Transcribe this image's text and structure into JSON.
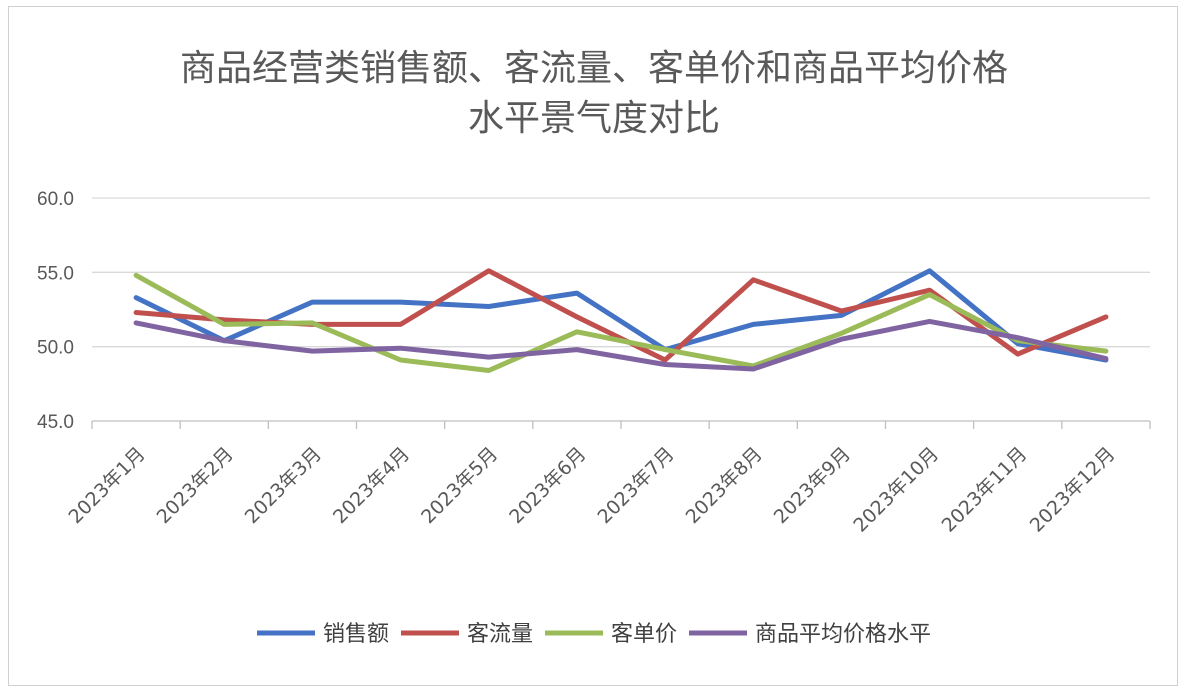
{
  "chart_data": {
    "type": "line",
    "title_lines": [
      "商品经营类销售额、客流量、客单价和商品平均价格",
      "水平景气度对比"
    ],
    "categories": [
      "2023年1月",
      "2023年2月",
      "2023年3月",
      "2023年4月",
      "2023年5月",
      "2023年6月",
      "2023年7月",
      "2023年8月",
      "2023年9月",
      "2023年10月",
      "2023年11月",
      "2023年12月"
    ],
    "ylim": [
      45.0,
      60.0
    ],
    "yticks": [
      "45.0",
      "50.0",
      "55.0",
      "60.0"
    ],
    "ytick_values": [
      45,
      50,
      55,
      60
    ],
    "grid": true,
    "legend_position": "bottom",
    "series": [
      {
        "name": "销售额",
        "color": "#4472C4",
        "values": [
          53.3,
          50.4,
          53.0,
          53.0,
          52.7,
          53.6,
          49.8,
          51.5,
          52.1,
          55.1,
          50.2,
          49.1
        ]
      },
      {
        "name": "客流量",
        "color": "#C0504D",
        "values": [
          52.3,
          51.8,
          51.5,
          51.5,
          55.1,
          52.0,
          49.1,
          54.5,
          52.4,
          53.8,
          49.5,
          52.0
        ]
      },
      {
        "name": "客单价",
        "color": "#9BBB59",
        "values": [
          54.8,
          51.5,
          51.6,
          49.1,
          48.4,
          51.0,
          49.8,
          48.7,
          50.9,
          53.5,
          50.4,
          49.7
        ]
      },
      {
        "name": "商品平均价格水平",
        "color": "#8064A2",
        "values": [
          51.6,
          50.4,
          49.7,
          49.9,
          49.3,
          49.8,
          48.8,
          48.5,
          50.5,
          51.7,
          50.6,
          49.2
        ]
      }
    ]
  }
}
